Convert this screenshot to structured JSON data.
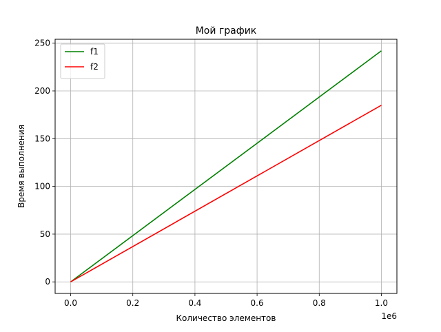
{
  "chart_data": {
    "type": "line",
    "title": "Мой график",
    "xlabel": "Количество элементов",
    "ylabel": "Время выполнения",
    "x_offset_label": "1e6",
    "xlim": [
      -0.05,
      1.05
    ],
    "ylim": [
      -12.1,
      254.1
    ],
    "xticks": [
      0.0,
      0.2,
      0.4,
      0.6,
      0.8,
      1.0
    ],
    "xtick_labels": [
      "0.0",
      "0.2",
      "0.4",
      "0.6",
      "0.8",
      "1.0"
    ],
    "yticks": [
      0,
      50,
      100,
      150,
      200,
      250
    ],
    "ytick_labels": [
      "0",
      "50",
      "100",
      "150",
      "200",
      "250"
    ],
    "grid": true,
    "legend_position": "upper-left",
    "series": [
      {
        "name": "f1",
        "color": "#008000",
        "x": [
          0.0,
          1.0
        ],
        "y": [
          0,
          242
        ]
      },
      {
        "name": "f2",
        "color": "#ff0000",
        "x": [
          0.0,
          1.0
        ],
        "y": [
          0,
          185
        ]
      }
    ]
  }
}
